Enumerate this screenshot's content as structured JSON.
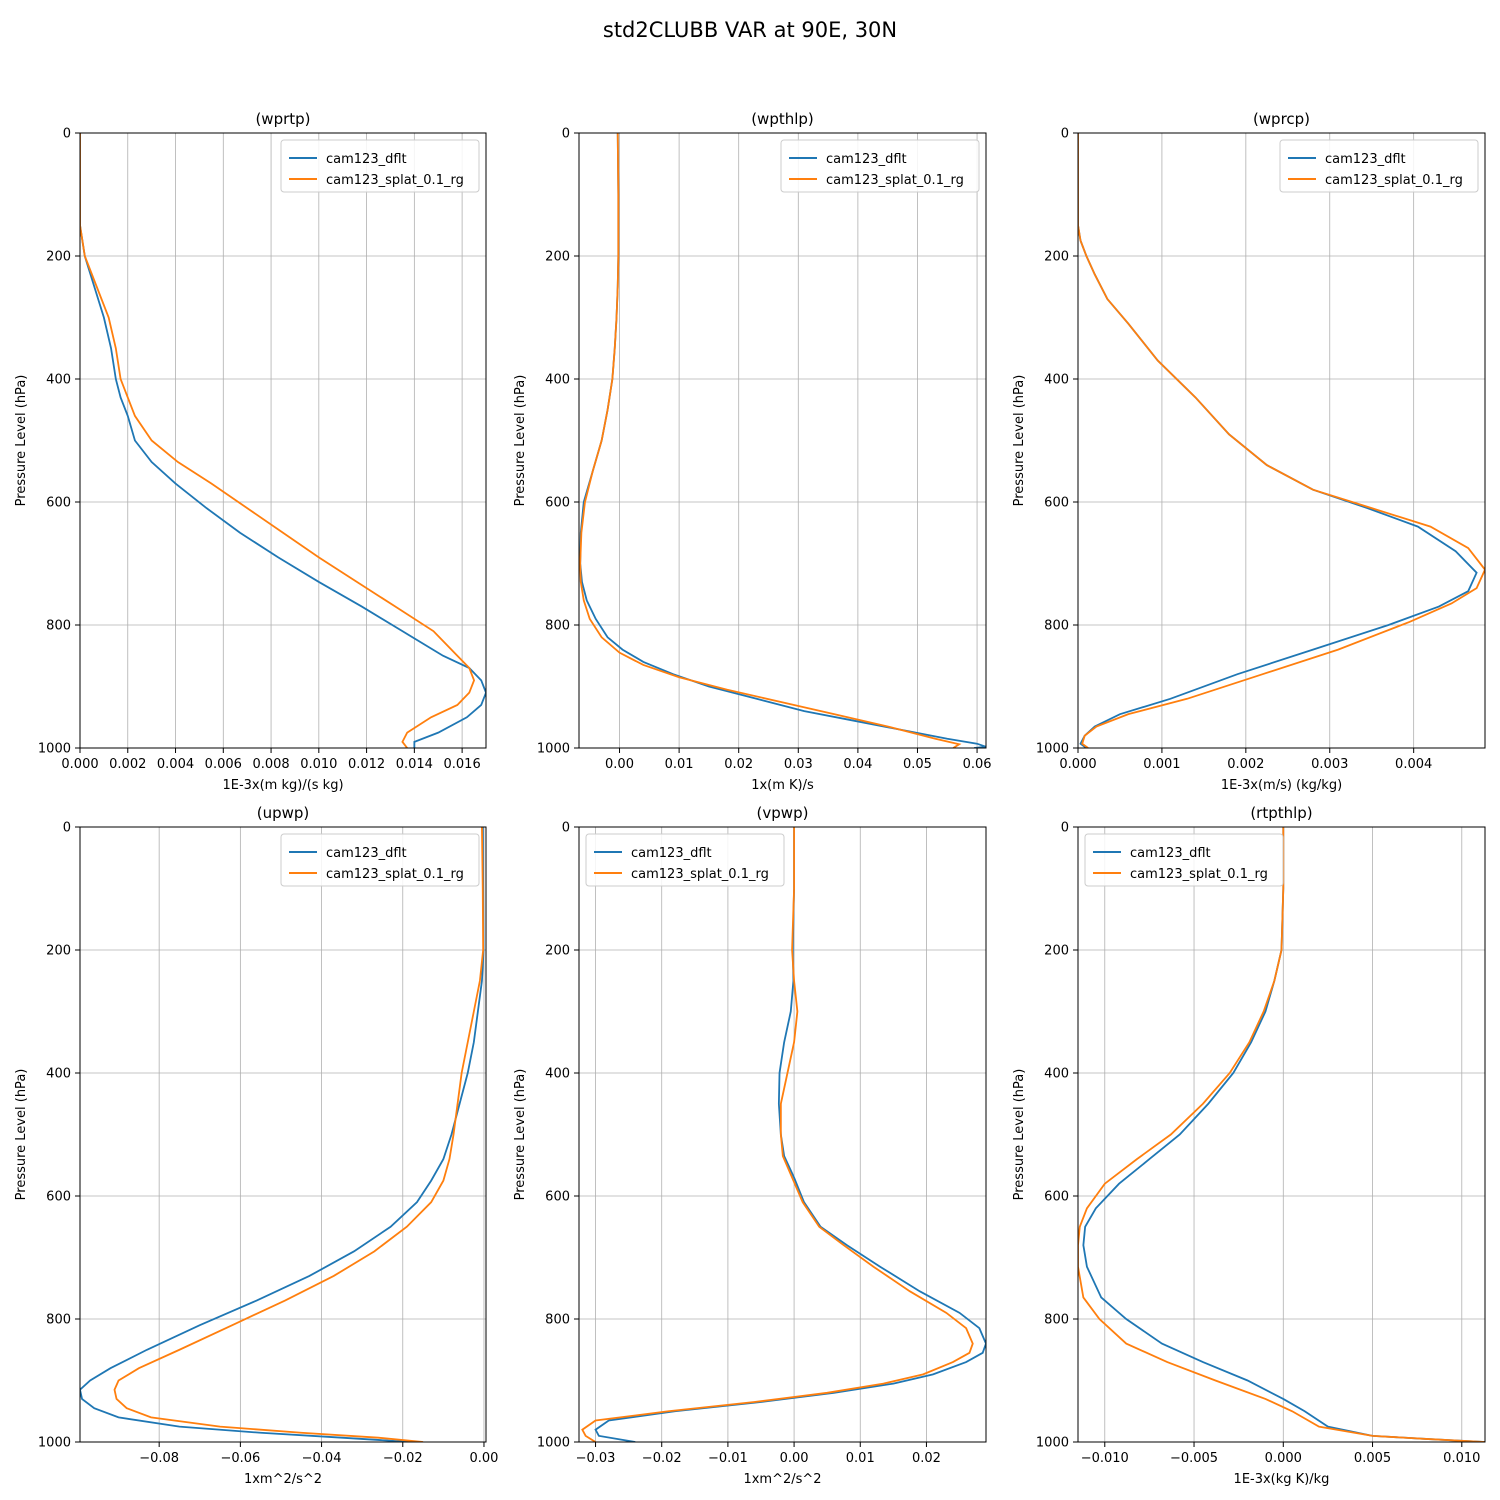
{
  "figure": {
    "title": "std2CLUBB VAR at 90E, 30N"
  },
  "chart_data": [
    {
      "type": "line",
      "title": "(wprtp)",
      "xlabel": "1E-3x(m kg)/(s kg)",
      "ylabel": "Pressure Level (hPa)",
      "xlim": [
        0.0,
        0.017
      ],
      "ylim": [
        1000,
        0
      ],
      "xticks": [
        "0.000",
        "0.002",
        "0.004",
        "0.006",
        "0.008",
        "0.010",
        "0.012",
        "0.014",
        "0.016"
      ],
      "xtick_values": [
        0.0,
        0.002,
        0.004,
        0.006,
        0.008,
        0.01,
        0.012,
        0.014,
        0.016
      ],
      "yticks": [
        "0",
        "200",
        "400",
        "600",
        "800",
        "1000"
      ],
      "ytick_values": [
        0,
        200,
        400,
        600,
        800,
        1000
      ],
      "legend_loc": "upper right",
      "grid": true,
      "series": [
        {
          "name": "cam123_dflt",
          "color": "#1f77b4",
          "x": [
            0,
            0,
            0.0002,
            0.0006,
            0.001,
            0.0013,
            0.0015,
            0.0017,
            0.002,
            0.0023,
            0.003,
            0.004,
            0.0053,
            0.0067,
            0.0083,
            0.01,
            0.0118,
            0.0135,
            0.0152,
            0.0163,
            0.0168,
            0.017,
            0.0168,
            0.0162,
            0.015,
            0.014,
            0.014
          ],
          "y": [
            0,
            150,
            200,
            250,
            300,
            350,
            400,
            430,
            460,
            500,
            535,
            570,
            610,
            650,
            690,
            730,
            770,
            810,
            850,
            870,
            890,
            910,
            930,
            950,
            975,
            990,
            1000
          ]
        },
        {
          "name": "cam123_splat_0.1_rg",
          "color": "#ff7f0e",
          "x": [
            0,
            0,
            0.0002,
            0.0007,
            0.0012,
            0.0015,
            0.0017,
            0.002,
            0.0023,
            0.003,
            0.0041,
            0.0055,
            0.007,
            0.0085,
            0.01,
            0.0116,
            0.0132,
            0.0148,
            0.0158,
            0.0163,
            0.0165,
            0.0163,
            0.0158,
            0.0147,
            0.0137,
            0.0135,
            0.0137
          ],
          "y": [
            0,
            150,
            200,
            250,
            300,
            350,
            400,
            430,
            460,
            500,
            535,
            570,
            610,
            650,
            690,
            730,
            770,
            810,
            850,
            870,
            890,
            910,
            930,
            950,
            975,
            990,
            1000
          ]
        }
      ]
    },
    {
      "type": "line",
      "title": "(wpthlp)",
      "xlabel": "1x(m K)/s",
      "ylabel": "Pressure Level (hPa)",
      "xlim": [
        -0.0068,
        0.0615
      ],
      "ylim": [
        1000,
        0
      ],
      "xticks": [
        "0.00",
        "0.01",
        "0.02",
        "0.03",
        "0.04",
        "0.05",
        "0.06"
      ],
      "xtick_values": [
        0,
        0.01,
        0.02,
        0.03,
        0.04,
        0.05,
        0.06
      ],
      "yticks": [
        "0",
        "200",
        "400",
        "600",
        "800",
        "1000"
      ],
      "ytick_values": [
        0,
        200,
        400,
        600,
        800,
        1000
      ],
      "legend_loc": "upper right",
      "grid": true,
      "series": [
        {
          "name": "cam123_dflt",
          "color": "#1f77b4",
          "x": [
            -0.0003,
            -0.0002,
            -0.0002,
            -0.0003,
            -0.0005,
            -0.0008,
            -0.0012,
            -0.002,
            -0.003,
            -0.0045,
            -0.006,
            -0.0065,
            -0.0066,
            -0.0063,
            -0.0055,
            -0.004,
            -0.002,
            0.0005,
            0.004,
            0.009,
            0.015,
            0.023,
            0.031,
            0.039,
            0.047,
            0.055,
            0.06,
            0.0615,
            0.0595
          ],
          "y": [
            0,
            100,
            200,
            250,
            300,
            350,
            400,
            450,
            500,
            550,
            600,
            650,
            700,
            730,
            760,
            790,
            820,
            840,
            860,
            880,
            900,
            920,
            940,
            955,
            970,
            985,
            993,
            998,
            1000
          ]
        },
        {
          "name": "cam123_splat_0.1_rg",
          "color": "#ff7f0e",
          "x": [
            -0.0003,
            -0.0002,
            -0.0002,
            -0.0003,
            -0.0005,
            -0.0008,
            -0.0012,
            -0.002,
            -0.003,
            -0.0045,
            -0.0058,
            -0.0064,
            -0.0066,
            -0.0065,
            -0.006,
            -0.005,
            -0.003,
            0.0,
            0.004,
            0.01,
            0.018,
            0.027,
            0.036,
            0.045,
            0.053,
            0.057,
            0.056
          ],
          "y": [
            0,
            100,
            200,
            250,
            300,
            350,
            400,
            450,
            500,
            550,
            600,
            650,
            700,
            730,
            760,
            790,
            820,
            845,
            865,
            885,
            905,
            925,
            945,
            965,
            985,
            994,
            1000
          ]
        }
      ]
    },
    {
      "type": "line",
      "title": "(wprcp)",
      "xlabel": "1E-3x(m/s) (kg/kg)",
      "ylabel": "Pressure Level (hPa)",
      "xlim": [
        0.0,
        0.00485
      ],
      "ylim": [
        1000,
        0
      ],
      "xticks": [
        "0.000",
        "0.001",
        "0.002",
        "0.003",
        "0.004"
      ],
      "xtick_values": [
        0,
        0.001,
        0.002,
        0.003,
        0.004
      ],
      "yticks": [
        "0",
        "200",
        "400",
        "600",
        "800",
        "1000"
      ],
      "ytick_values": [
        0,
        200,
        400,
        600,
        800,
        1000
      ],
      "legend_loc": "upper right",
      "grid": true,
      "series": [
        {
          "name": "cam123_dflt",
          "color": "#1f77b4",
          "x": [
            0,
            0,
            3e-05,
            0.0001,
            0.0002,
            0.00035,
            0.0006,
            0.00095,
            0.0014,
            0.0018,
            0.00225,
            0.0028,
            0.00345,
            0.00405,
            0.0045,
            0.00475,
            0.00465,
            0.0043,
            0.0037,
            0.0028,
            0.0019,
            0.0011,
            0.0005,
            0.0002,
            8e-05,
            3e-05,
            0.0001
          ],
          "y": [
            0,
            150,
            175,
            200,
            230,
            270,
            310,
            370,
            430,
            490,
            540,
            580,
            610,
            640,
            680,
            715,
            745,
            770,
            800,
            840,
            880,
            920,
            945,
            965,
            980,
            993,
            1000
          ]
        },
        {
          "name": "cam123_splat_0.1_rg",
          "color": "#ff7f0e",
          "x": [
            0,
            0,
            3e-05,
            0.0001,
            0.0002,
            0.00035,
            0.0006,
            0.00095,
            0.0014,
            0.0018,
            0.00225,
            0.0028,
            0.0035,
            0.0042,
            0.00465,
            0.00485,
            0.00475,
            0.00445,
            0.00395,
            0.0031,
            0.0022,
            0.0013,
            0.0006,
            0.00022,
            8e-05,
            5e-05,
            0.00012
          ],
          "y": [
            0,
            150,
            175,
            200,
            230,
            270,
            310,
            370,
            430,
            490,
            540,
            580,
            610,
            640,
            675,
            710,
            740,
            765,
            795,
            840,
            880,
            920,
            945,
            965,
            980,
            993,
            1000
          ]
        }
      ]
    },
    {
      "type": "line",
      "title": "(upwp)",
      "xlabel": "1xm^2/s^2",
      "ylabel": "Pressure Level (hPa)",
      "xlim": [
        -0.0995,
        0.0005
      ],
      "ylim": [
        1000,
        0
      ],
      "xticks": [
        "−0.08",
        "−0.06",
        "−0.04",
        "−0.02",
        "0.00"
      ],
      "xtick_values": [
        -0.08,
        -0.06,
        -0.04,
        -0.02,
        0
      ],
      "yticks": [
        "0",
        "200",
        "400",
        "600",
        "800",
        "1000"
      ],
      "ytick_values": [
        0,
        200,
        400,
        600,
        800,
        1000
      ],
      "legend_loc": "upper right",
      "grid": true,
      "series": [
        {
          "name": "cam123_dflt",
          "color": "#1f77b4",
          "x": [
            -0.0003,
            -0.0002,
            -0.0001,
            -0.0005,
            -0.0015,
            -0.0025,
            -0.004,
            -0.006,
            -0.008,
            -0.01,
            -0.013,
            -0.0165,
            -0.023,
            -0.032,
            -0.043,
            -0.056,
            -0.07,
            -0.083,
            -0.092,
            -0.097,
            -0.0995,
            -0.099,
            -0.096,
            -0.09,
            -0.075,
            -0.055,
            -0.035,
            -0.018
          ],
          "y": [
            0,
            100,
            200,
            250,
            300,
            350,
            400,
            450,
            500,
            540,
            575,
            610,
            650,
            690,
            730,
            770,
            810,
            850,
            880,
            900,
            915,
            930,
            945,
            960,
            975,
            985,
            993,
            1000
          ]
        },
        {
          "name": "cam123_splat_0.1_rg",
          "color": "#ff7f0e",
          "x": [
            -0.0005,
            -0.0003,
            -0.0002,
            -0.001,
            -0.0025,
            -0.004,
            -0.0055,
            -0.0065,
            -0.0075,
            -0.0085,
            -0.01,
            -0.013,
            -0.019,
            -0.027,
            -0.037,
            -0.049,
            -0.062,
            -0.075,
            -0.085,
            -0.09,
            -0.091,
            -0.0905,
            -0.088,
            -0.082,
            -0.065,
            -0.045,
            -0.026,
            -0.015
          ],
          "y": [
            0,
            100,
            200,
            250,
            300,
            350,
            400,
            450,
            500,
            540,
            575,
            610,
            650,
            690,
            730,
            770,
            810,
            850,
            880,
            900,
            915,
            930,
            945,
            960,
            975,
            985,
            993,
            1000
          ]
        }
      ]
    },
    {
      "type": "line",
      "title": "(vpwp)",
      "xlabel": "1xm^2/s^2",
      "ylabel": "Pressure Level (hPa)",
      "xlim": [
        -0.0325,
        0.029
      ],
      "ylim": [
        1000,
        0
      ],
      "xticks": [
        "−0.03",
        "−0.02",
        "−0.01",
        "0.00",
        "0.01",
        "0.02"
      ],
      "xtick_values": [
        -0.03,
        -0.02,
        -0.01,
        0,
        0.01,
        0.02
      ],
      "yticks": [
        "0",
        "200",
        "400",
        "600",
        "800",
        "1000"
      ],
      "ytick_values": [
        0,
        200,
        400,
        600,
        800,
        1000
      ],
      "legend_loc": "upper left",
      "grid": true,
      "series": [
        {
          "name": "cam123_dflt",
          "color": "#1f77b4",
          "x": [
            0,
            0,
            -0.0002,
            -0.0001,
            -0.0005,
            -0.0015,
            -0.0022,
            -0.0023,
            -0.002,
            -0.0015,
            0.0,
            0.0015,
            0.004,
            0.008,
            0.013,
            0.019,
            0.025,
            0.028,
            0.029,
            0.0285,
            0.026,
            0.021,
            0.015,
            0.006,
            -0.005,
            -0.018,
            -0.028,
            -0.03,
            -0.0295,
            -0.024
          ],
          "y": [
            0,
            100,
            200,
            250,
            300,
            350,
            400,
            450,
            500,
            535,
            570,
            610,
            650,
            680,
            715,
            755,
            790,
            815,
            840,
            855,
            870,
            890,
            905,
            920,
            935,
            950,
            965,
            980,
            990,
            1000
          ]
        },
        {
          "name": "cam123_splat_0.1_rg",
          "color": "#ff7f0e",
          "x": [
            0,
            0,
            -0.0003,
            0.0,
            0.0005,
            0.0,
            -0.001,
            -0.002,
            -0.002,
            -0.0017,
            -0.0003,
            0.0013,
            0.0038,
            0.0075,
            0.012,
            0.0175,
            0.023,
            0.026,
            0.027,
            0.0265,
            0.024,
            0.0195,
            0.0135,
            0.005,
            -0.006,
            -0.019,
            -0.03,
            -0.032,
            -0.0315,
            -0.03
          ],
          "y": [
            0,
            100,
            200,
            250,
            300,
            350,
            400,
            450,
            500,
            535,
            570,
            610,
            650,
            680,
            715,
            755,
            790,
            815,
            840,
            855,
            870,
            890,
            905,
            920,
            935,
            950,
            965,
            980,
            990,
            1000
          ]
        }
      ]
    },
    {
      "type": "line",
      "title": "(rtpthlp)",
      "xlabel": "1E-3x(kg K)/kg",
      "ylabel": "Pressure Level (hPa)",
      "xlim": [
        -0.0115,
        0.0113
      ],
      "ylim": [
        1000,
        0
      ],
      "xticks": [
        "−0.010",
        "−0.005",
        "0.000",
        "0.005",
        "0.010"
      ],
      "xtick_values": [
        -0.01,
        -0.005,
        0,
        0.005,
        0.01
      ],
      "yticks": [
        "0",
        "200",
        "400",
        "600",
        "800",
        "1000"
      ],
      "ytick_values": [
        0,
        200,
        400,
        600,
        800,
        1000
      ],
      "legend_loc": "upper left",
      "grid": true,
      "series": [
        {
          "name": "cam123_dflt",
          "color": "#1f77b4",
          "x": [
            0,
            0,
            -0.0001,
            -0.0005,
            -0.001,
            -0.0018,
            -0.0028,
            -0.0042,
            -0.0058,
            -0.0075,
            -0.0092,
            -0.0105,
            -0.0111,
            -0.0112,
            -0.011,
            -0.0102,
            -0.0088,
            -0.0068,
            -0.0045,
            -0.002,
            0.0,
            0.0012,
            0.0025,
            0.005,
            0.008,
            0.0113
          ],
          "y": [
            0,
            100,
            200,
            250,
            300,
            350,
            400,
            450,
            500,
            540,
            580,
            620,
            650,
            680,
            715,
            765,
            800,
            840,
            870,
            900,
            930,
            950,
            975,
            990,
            995,
            1000
          ]
        },
        {
          "name": "cam123_splat_0.1_rg",
          "color": "#ff7f0e",
          "x": [
            0,
            0,
            -0.0001,
            -0.0005,
            -0.0011,
            -0.0019,
            -0.003,
            -0.0045,
            -0.0063,
            -0.0082,
            -0.01,
            -0.011,
            -0.0114,
            -0.0115,
            -0.0115,
            -0.0112,
            -0.0103,
            -0.0088,
            -0.0065,
            -0.0038,
            -0.001,
            0.0005,
            0.002,
            0.005,
            0.008,
            0.0113
          ],
          "y": [
            0,
            100,
            200,
            250,
            300,
            350,
            400,
            450,
            500,
            540,
            580,
            620,
            650,
            680,
            715,
            765,
            800,
            840,
            870,
            900,
            930,
            950,
            975,
            990,
            995,
            1000
          ]
        }
      ]
    }
  ]
}
